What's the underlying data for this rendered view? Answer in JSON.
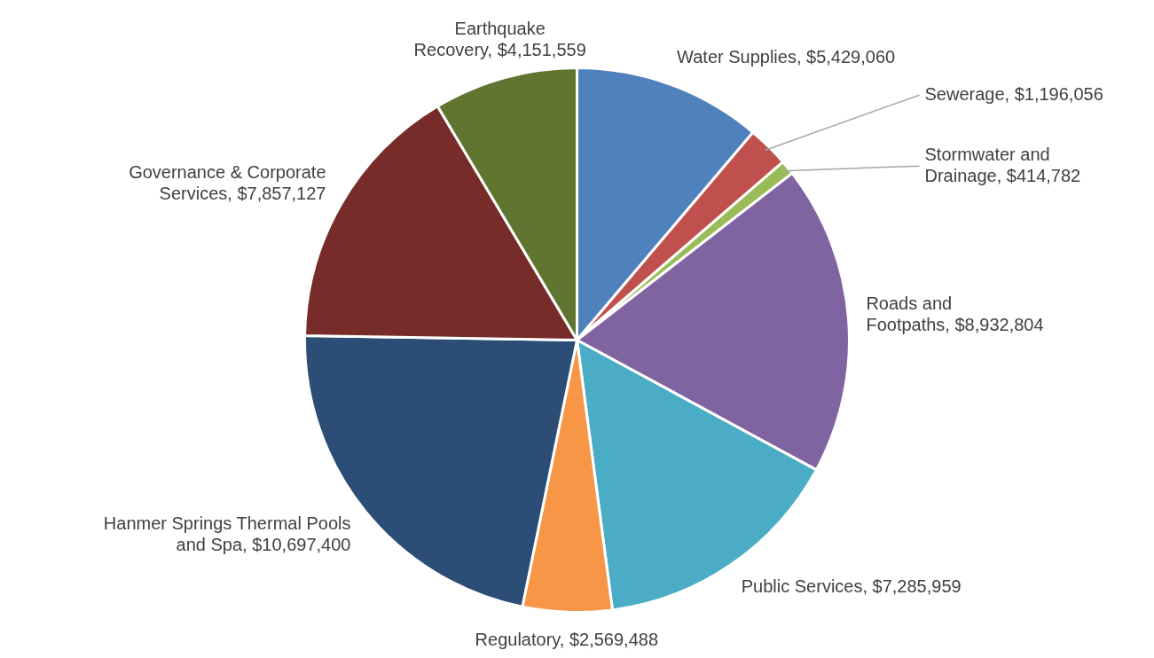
{
  "chart_data": {
    "type": "pie",
    "categories": [
      "Water Supplies",
      "Sewerage",
      "Stormwater and Drainage",
      "Roads and Footpaths",
      "Public Services",
      "Regulatory",
      "Hanmer Springs Thermal Pools and Spa",
      "Governance & Corporate Services",
      "Earthquake Recovery"
    ],
    "values": [
      5429060,
      1196056,
      414782,
      8932804,
      7285959,
      2569488,
      10697400,
      7857127,
      4151559
    ],
    "value_labels": [
      "$5,429,060",
      "$1,196,056",
      "$414,782",
      "$8,932,804",
      "$7,285,959",
      "$2,569,488",
      "$10,697,400",
      "$7,857,127",
      "$4,151,559"
    ],
    "colors": [
      "#4f81bd",
      "#c0504d",
      "#9bbb59",
      "#8064a2",
      "#4bacc6",
      "#f79646",
      "#2c4d75",
      "#772c2a",
      "#5f7530"
    ],
    "legend": false
  }
}
